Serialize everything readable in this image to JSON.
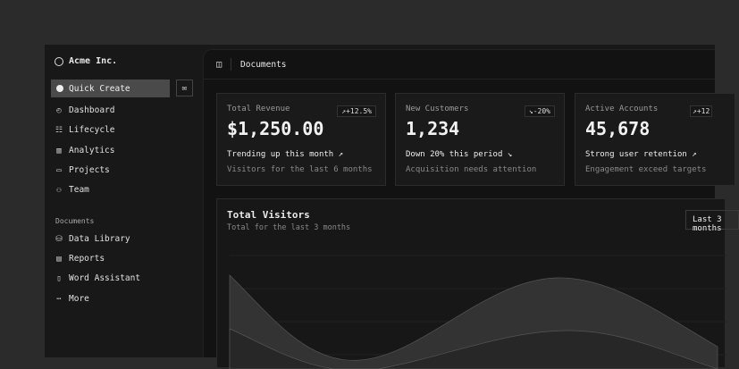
{
  "sidebar": {
    "brand": "Acme Inc.",
    "quick_create": "Quick Create",
    "items": [
      {
        "label": "Dashboard",
        "icon": "gauge-icon"
      },
      {
        "label": "Lifecycle",
        "icon": "list-icon"
      },
      {
        "label": "Analytics",
        "icon": "bar-chart-icon"
      },
      {
        "label": "Projects",
        "icon": "folder-icon"
      },
      {
        "label": "Team",
        "icon": "users-icon"
      }
    ],
    "section": "Documents",
    "docs": [
      {
        "label": "Data Library",
        "icon": "database-icon"
      },
      {
        "label": "Reports",
        "icon": "report-icon"
      },
      {
        "label": "Word Assistant",
        "icon": "file-icon"
      },
      {
        "label": "More",
        "icon": "more-icon"
      }
    ]
  },
  "header": {
    "title": "Documents"
  },
  "cards": [
    {
      "label": "Total Revenue",
      "value": "$1,250.00",
      "badge": "↗+12.5%",
      "trend": "Trending up this month ↗",
      "note": "Visitors for the last 6 months"
    },
    {
      "label": "New Customers",
      "value": "1,234",
      "badge": "↘-20%",
      "trend": "Down 20% this period ↘",
      "note": "Acquisition needs attention"
    },
    {
      "label": "Active Accounts",
      "value": "45,678",
      "badge": "↗+12",
      "trend": "Strong user retention ↗",
      "note": "Engagement exceed targets"
    }
  ],
  "chart": {
    "title": "Total Visitors",
    "subtitle": "Total for the last 3 months",
    "range": "Last 3 months",
    "colors": {
      "area": "#3a3a3a",
      "area2": "#2a2a2a"
    }
  }
}
